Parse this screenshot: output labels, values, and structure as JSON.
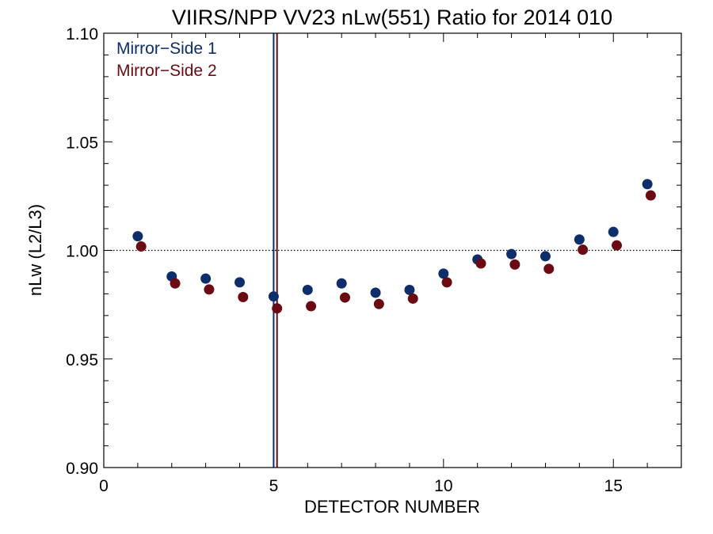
{
  "chart_data": {
    "type": "scatter",
    "title": "VIIRS/NPP VV23 nLw(551) Ratio for 2014 010",
    "xlabel": "DETECTOR NUMBER",
    "ylabel": "nLw (L2/L3)",
    "xlim": [
      0,
      17
    ],
    "ylim": [
      0.9,
      1.1
    ],
    "xticks": [
      0,
      5,
      10,
      15
    ],
    "xtick_labels": [
      "0",
      "5",
      "10",
      "15"
    ],
    "yticks": [
      0.9,
      0.95,
      1.0,
      1.05,
      1.1
    ],
    "ytick_labels": [
      "0.90",
      "0.95",
      "1.00",
      "1.05",
      "1.10"
    ],
    "x_minor_step": 1,
    "y_minor_step": 0.01,
    "reference_line_y": 1.0,
    "grid": false,
    "legend_position": "top-left",
    "series": [
      {
        "name": "Mirror−Side 1",
        "color": "#0d2d6b",
        "marker_line_x": 5.0,
        "x": [
          1,
          2,
          3,
          4,
          5,
          6,
          7,
          8,
          9,
          10,
          11,
          12,
          13,
          14,
          15,
          16
        ],
        "y": [
          1.0065,
          0.988,
          0.987,
          0.9853,
          0.9788,
          0.9818,
          0.9848,
          0.9805,
          0.9818,
          0.9893,
          0.9958,
          0.9983,
          0.9973,
          1.005,
          1.0085,
          1.0305
        ]
      },
      {
        "name": "Mirror−Side 2",
        "color": "#6b0a12",
        "marker_line_x": 5.1,
        "x": [
          1.1,
          2.1,
          3.1,
          4.1,
          5.1,
          6.1,
          7.1,
          8.1,
          9.1,
          10.1,
          11.1,
          12.1,
          13.1,
          14.1,
          15.1,
          16.1
        ],
        "y": [
          1.0018,
          0.9848,
          0.982,
          0.9785,
          0.9733,
          0.9743,
          0.9783,
          0.9753,
          0.9778,
          0.9853,
          0.994,
          0.9935,
          0.9915,
          1.0003,
          1.0023,
          1.0253
        ]
      }
    ]
  }
}
